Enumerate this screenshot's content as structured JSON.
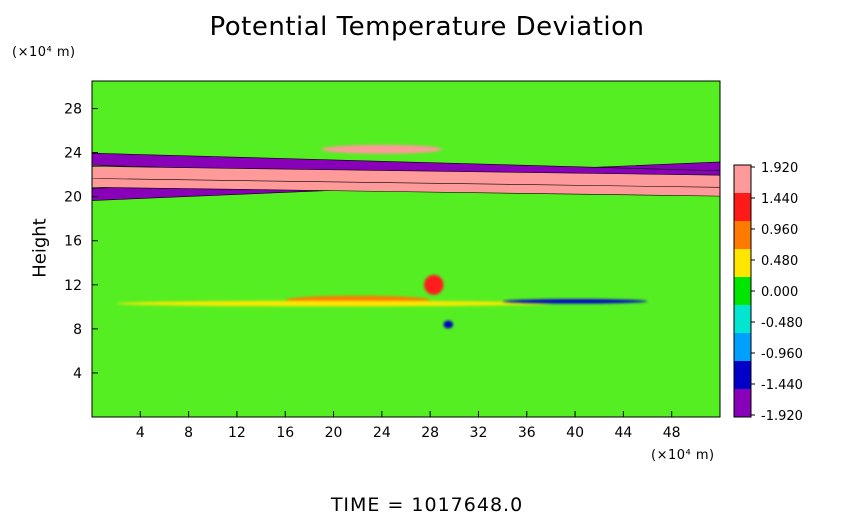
{
  "chart_data": {
    "type": "heatmap",
    "title": "Potential Temperature Deviation",
    "ylabel": "Height",
    "y_unit": "(×10⁴ m)",
    "x_unit": "(×10⁴ m)",
    "xlim": [
      0,
      52
    ],
    "ylim": [
      0,
      30.5
    ],
    "x_ticks": [
      4,
      8,
      12,
      16,
      20,
      24,
      28,
      32,
      36,
      40,
      44,
      48
    ],
    "y_ticks": [
      4,
      8,
      12,
      16,
      20,
      24,
      28
    ],
    "colorbar": {
      "min": -1.92,
      "max": 1.92,
      "tick_values": [
        1.92,
        1.44,
        0.96,
        0.48,
        0.0,
        -0.48,
        -0.96,
        -1.44,
        -1.92
      ],
      "tick_labels": [
        "1.920",
        "1.440",
        "0.960",
        "0.480",
        "0.000",
        "-0.480",
        "-0.960",
        "-1.440",
        "-1.920"
      ],
      "colors": [
        "#ff9a9a",
        "#ff1a1a",
        "#ff7a00",
        "#ffe600",
        "#00e600",
        "#00e6d0",
        "#00a0ff",
        "#0000c8",
        "#8800b8"
      ]
    },
    "background_color": "#55ee22",
    "features": [
      {
        "kind": "band",
        "value": -1.92,
        "x": [
          0,
          52
        ],
        "y_start": 20.2,
        "y_end": 22.6
      },
      {
        "kind": "band",
        "value": 1.92,
        "x": [
          0,
          52
        ],
        "y_start": 21.4,
        "y_end": 20.6
      },
      {
        "kind": "band",
        "value": -1.92,
        "x": [
          0,
          52
        ],
        "y_start": 23.4,
        "y_end": 21.8
      },
      {
        "kind": "band",
        "value": 1.92,
        "x": [
          0,
          52
        ],
        "y_start": 22.2,
        "y_end": 21.4
      },
      {
        "kind": "blob",
        "value": 1.92,
        "x": 24,
        "y": 24.3,
        "rx": 5,
        "ry": 0.4
      },
      {
        "kind": "blob",
        "value": 1.2,
        "x": 22,
        "y": 10.6,
        "rx": 6,
        "ry": 0.4
      },
      {
        "kind": "blob",
        "value": 0.6,
        "x": 20,
        "y": 10.3,
        "rx": 18,
        "ry": 0.25
      },
      {
        "kind": "blob",
        "value": -1.2,
        "x": 40,
        "y": 10.5,
        "rx": 6,
        "ry": 0.2
      },
      {
        "kind": "blob",
        "value": -1.6,
        "x": 29.5,
        "y": 8.4,
        "rx": 0.4,
        "ry": 0.35
      },
      {
        "kind": "blob",
        "value": 1.6,
        "x": 28.3,
        "y": 12.0,
        "rx": 0.8,
        "ry": 0.9
      }
    ]
  },
  "footer": {
    "time_label": "TIME = 1017648.0"
  }
}
